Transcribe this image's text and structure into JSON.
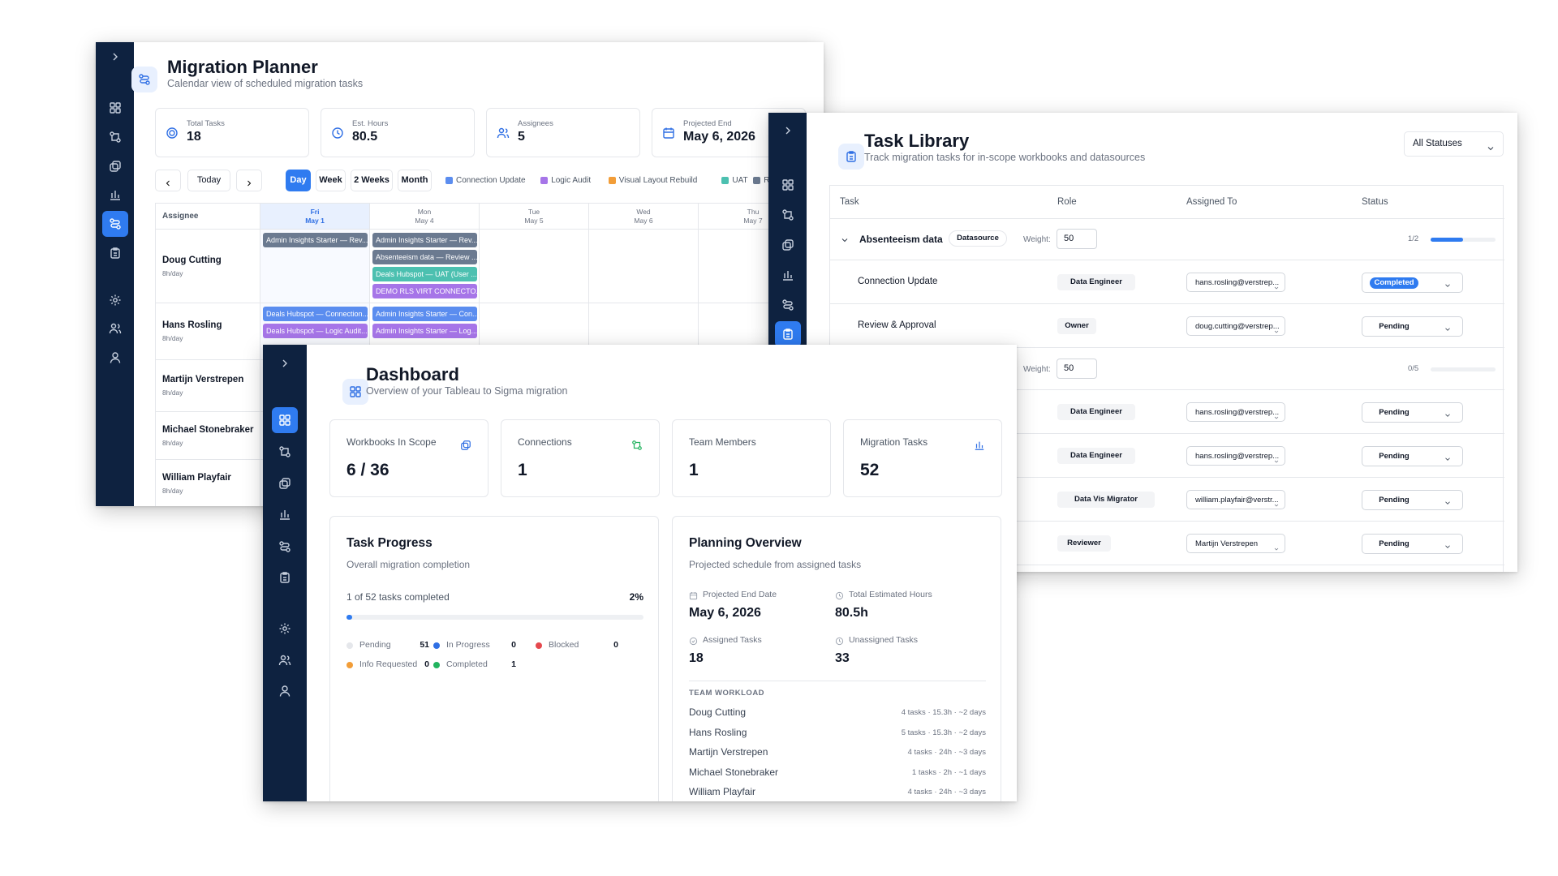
{
  "planner": {
    "title": "Migration Planner",
    "subtitle": "Calendar view of scheduled migration tasks",
    "stats": [
      {
        "label": "Total Tasks",
        "value": 18
      },
      {
        "label": "Est. Hours",
        "value": 80.5
      },
      {
        "label": "Assignees",
        "value": 5
      },
      {
        "label": "Projected End",
        "value": "May 6, 2026"
      }
    ],
    "today": "Today",
    "views": [
      "Day",
      "Week",
      "2 Weeks",
      "Month"
    ],
    "legend": [
      {
        "name": "Connection Update",
        "color": "#5b8def"
      },
      {
        "name": "Logic Audit",
        "color": "#a675e8"
      },
      {
        "name": "Visual Layout Rebuild",
        "color": "#f29d38"
      },
      {
        "name": "UAT",
        "color": "#4cc0b0"
      },
      {
        "name": "Review",
        "color": "#6b7a90"
      }
    ],
    "assignee_header": "Assignee",
    "days": [
      {
        "dow": "Fri",
        "date": "May 1"
      },
      {
        "dow": "Mon",
        "date": "May 4"
      },
      {
        "dow": "Tue",
        "date": "May 5"
      },
      {
        "dow": "Wed",
        "date": "May 6"
      },
      {
        "dow": "Thu",
        "date": "May 7"
      }
    ],
    "assignees": [
      {
        "name": "Doug Cutting",
        "hours": "8h/day",
        "schedule": [
          [
            {
              "label": "Admin Insights Starter — Rev...",
              "color": "#6b7a90"
            }
          ],
          [
            {
              "label": "Admin Insights Starter — Rev...",
              "color": "#6b7a90"
            },
            {
              "label": "Absenteeism data — Review ...",
              "color": "#6b7a90"
            },
            {
              "label": "Deals Hubspot — UAT (User ...",
              "color": "#4cc0b0"
            },
            {
              "label": "DEMO RLS VIRT CONNECTO...",
              "color": "#a675e8"
            }
          ]
        ]
      },
      {
        "name": "Hans Rosling",
        "hours": "8h/day",
        "schedule": [
          [
            {
              "label": "Deals Hubspot — Connection...",
              "color": "#5b8def"
            },
            {
              "label": "Deals Hubspot — Logic Audit...",
              "color": "#a675e8"
            }
          ],
          [
            {
              "label": "Admin Insights Starter — Con...",
              "color": "#5b8def"
            },
            {
              "label": "Admin Insights Starter — Log...",
              "color": "#a675e8"
            }
          ]
        ]
      },
      {
        "name": "Martijn Verstrepen",
        "hours": "8h/day",
        "schedule": []
      },
      {
        "name": "Michael Stonebraker",
        "hours": "8h/day",
        "schedule": []
      },
      {
        "name": "William Playfair",
        "hours": "8h/day",
        "schedule": []
      }
    ]
  },
  "library": {
    "title": "Task Library",
    "subtitle": "Track migration tasks for in-scope workbooks and datasources",
    "filter": "All Statuses",
    "columns": [
      "Task",
      "Role",
      "Assigned To",
      "Status"
    ],
    "weight_label": "Weight:",
    "groups": [
      {
        "name": "Absenteeism data",
        "badge": "Datasource",
        "weight": 50,
        "progress": "1/2",
        "rows": [
          {
            "task": "Connection Update",
            "role": "Data Engineer",
            "assignee": "hans.rosling@verstrep...",
            "status": "Completed"
          },
          {
            "task": "Review & Approval",
            "role": "Owner",
            "assignee": "doug.cutting@verstrep...",
            "status": "Pending"
          }
        ]
      },
      {
        "weight": 50,
        "progress": "0/5",
        "rows": [
          {
            "role": "Data Engineer",
            "assignee": "hans.rosling@verstrep...",
            "status": "Pending"
          },
          {
            "role": "Data Engineer",
            "assignee": "hans.rosling@verstrep...",
            "status": "Pending"
          },
          {
            "role": "Data Vis Migrator",
            "assignee": "william.playfair@verstr...",
            "status": "Pending"
          },
          {
            "role": "Reviewer",
            "assignee": "Martijn Verstrepen",
            "status": "Pending"
          }
        ]
      }
    ]
  },
  "dashboard": {
    "title": "Dashboard",
    "subtitle": "Overview of your Tableau to Sigma migration",
    "stats": [
      {
        "label": "Workbooks In Scope",
        "value": "6 / 36"
      },
      {
        "label": "Connections",
        "value": 1
      },
      {
        "label": "Team Members",
        "value": 1
      },
      {
        "label": "Migration Tasks",
        "value": 52
      }
    ],
    "progress": {
      "title": "Task Progress",
      "subtitle": "Overall migration completion",
      "summary": "1 of 52 tasks completed",
      "percent": "2%",
      "statuses": [
        {
          "name": "Pending",
          "count": 51,
          "color": "#e5e7eb"
        },
        {
          "name": "In Progress",
          "count": 0,
          "color": "#2f6fe4"
        },
        {
          "name": "Blocked",
          "count": 0,
          "color": "#e5484d"
        },
        {
          "name": "Info Requested",
          "count": 0,
          "color": "#f29d38"
        },
        {
          "name": "Completed",
          "count": 1,
          "color": "#22b35e"
        }
      ]
    },
    "planning": {
      "title": "Planning Overview",
      "subtitle": "Projected schedule from assigned tasks",
      "metrics": [
        {
          "label": "Projected End Date",
          "value": "May 6, 2026"
        },
        {
          "label": "Total Estimated Hours",
          "value": "80.5h"
        },
        {
          "label": "Assigned Tasks",
          "value": 18
        },
        {
          "label": "Unassigned Tasks",
          "value": 33
        }
      ],
      "workload_title": "TEAM WORKLOAD",
      "workload": [
        {
          "name": "Doug Cutting",
          "detail": "4 tasks · 15.3h · ~2 days"
        },
        {
          "name": "Hans Rosling",
          "detail": "5 tasks · 15.3h · ~2 days"
        },
        {
          "name": "Martijn Verstrepen",
          "detail": "4 tasks · 24h · ~3 days"
        },
        {
          "name": "Michael Stonebraker",
          "detail": "1 tasks · 2h · ~1 days"
        },
        {
          "name": "William Playfair",
          "detail": "4 tasks · 24h · ~3 days"
        }
      ]
    }
  }
}
